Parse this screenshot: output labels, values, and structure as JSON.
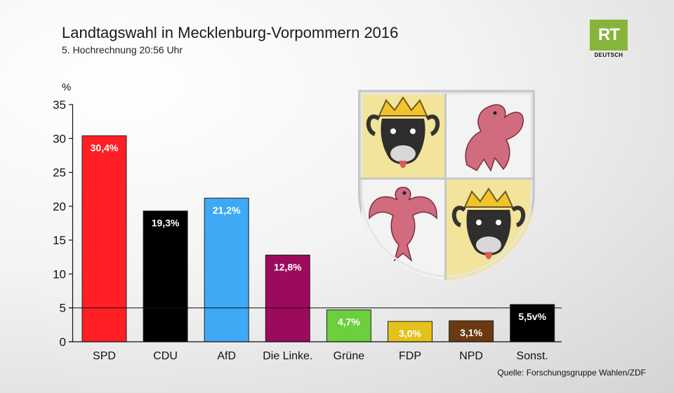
{
  "header": {
    "title": "Landtagswahl in Mecklenburg-Vorpommern 2016",
    "subtitle": "5. Hochrechnung 20:56 Uhr"
  },
  "logo": {
    "text": "RT",
    "subtext": "DEUTSCH",
    "color": "#86b53b"
  },
  "footer": {
    "source": "Quelle: Forschungsgruppe Wahlen/ZDF"
  },
  "crest": {
    "icon": "mecklenburg-vorpommern-coat-of-arms"
  },
  "chart_data": {
    "type": "bar",
    "unit_label": "%",
    "categories": [
      "SPD",
      "CDU",
      "AfD",
      "Die Linke.",
      "Grüne",
      "FDP",
      "NPD",
      "Sonst."
    ],
    "values": [
      30.4,
      19.3,
      21.2,
      12.8,
      4.7,
      3.0,
      3.1,
      5.5
    ],
    "value_labels": [
      "30,4%",
      "19,3%",
      "21,2%",
      "12,8%",
      "4,7%",
      "3,0%",
      "3,1%",
      "5,5v%"
    ],
    "colors": [
      "#ff1f24",
      "#000000",
      "#3ea9f5",
      "#9c0a5c",
      "#6ccf3d",
      "#e4c21a",
      "#6b3a12",
      "#000000"
    ],
    "yticks": [
      0,
      5,
      10,
      15,
      20,
      25,
      30,
      35
    ],
    "ylim": [
      0,
      35
    ],
    "threshold": 5
  }
}
